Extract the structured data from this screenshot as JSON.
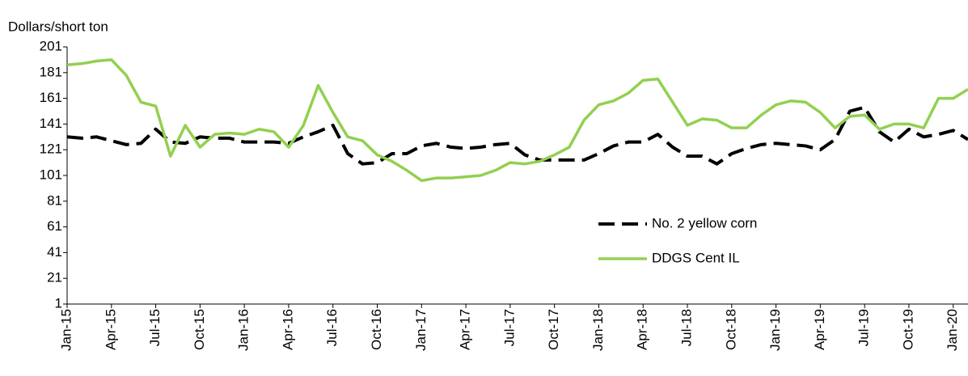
{
  "chart_data": {
    "type": "line",
    "y_label": "Dollars/short ton",
    "categories": [
      "Jan-15",
      null,
      null,
      "Apr-15",
      null,
      null,
      "Jul-15",
      null,
      null,
      "Oct-15",
      null,
      null,
      "Jan-16",
      null,
      null,
      "Apr-16",
      null,
      null,
      "Jul-16",
      null,
      null,
      "Oct-16",
      null,
      null,
      "Jan-17",
      null,
      null,
      "Apr-17",
      null,
      null,
      "Jul-17",
      null,
      null,
      "Oct-17",
      null,
      null,
      "Jan-18",
      null,
      null,
      "Apr-18",
      null,
      null,
      "Jul-18",
      null,
      null,
      "Oct-18",
      null,
      null,
      "Jan-19",
      null,
      null,
      "Apr-19",
      null,
      null,
      "Jul-19",
      null,
      null,
      "Oct-19",
      null,
      null,
      "Jan-20",
      null
    ],
    "series": [
      {
        "name": "No. 2 yellow corn",
        "color": "#000000",
        "dashed": true,
        "values": [
          131,
          130,
          131,
          128,
          125,
          126,
          137,
          127,
          126,
          131,
          130,
          130,
          127,
          127,
          127,
          126,
          131,
          135,
          140,
          118,
          110,
          111,
          118,
          118,
          124,
          126,
          123,
          122,
          123,
          125,
          126,
          117,
          113,
          113,
          113,
          113,
          118,
          124,
          127,
          127,
          133,
          123,
          116,
          116,
          110,
          118,
          122,
          125,
          126,
          125,
          124,
          121,
          129,
          151,
          154,
          135,
          127,
          137,
          131,
          133,
          136,
          129
        ]
      },
      {
        "name": "DDGS Cent IL",
        "color": "#92d050",
        "dashed": false,
        "values": [
          187,
          188,
          190,
          191,
          179,
          158,
          155,
          116,
          140,
          123,
          133,
          134,
          133,
          137,
          135,
          123,
          140,
          171,
          150,
          131,
          128,
          117,
          112,
          105,
          97,
          99,
          99,
          100,
          101,
          105,
          111,
          110,
          112,
          117,
          123,
          144,
          156,
          159,
          165,
          175,
          176,
          158,
          140,
          145,
          144,
          138,
          138,
          148,
          156,
          159,
          158,
          150,
          138,
          147,
          148,
          137,
          141,
          141,
          138,
          161,
          161,
          168
        ]
      }
    ],
    "ylim": [
      1,
      201
    ],
    "yticks": [
      1,
      21,
      41,
      61,
      81,
      101,
      121,
      141,
      161,
      181,
      201
    ],
    "grid": false
  }
}
